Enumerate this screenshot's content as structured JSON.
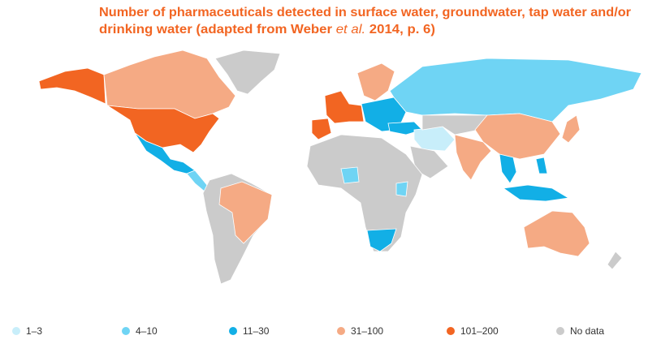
{
  "title": {
    "line1": "Number of pharmaceuticals detected in surface water, groundwater, tap water and/or",
    "line2_start": "drinking water (adapted from Weber ",
    "line2_italic": "et al.",
    "line2_end": " 2014, p. 6)",
    "color": "#f26522"
  },
  "legend": {
    "items": [
      {
        "label": "1–3",
        "color": "#c8eefa"
      },
      {
        "label": "4–10",
        "color": "#6fd4f4"
      },
      {
        "label": "11–30",
        "color": "#12afe6"
      },
      {
        "label": "31–100",
        "color": "#f5aa84"
      },
      {
        "label": "101–200",
        "color": "#f26522"
      },
      {
        "label": "No data",
        "color": "#cbcbcb"
      }
    ]
  }
}
